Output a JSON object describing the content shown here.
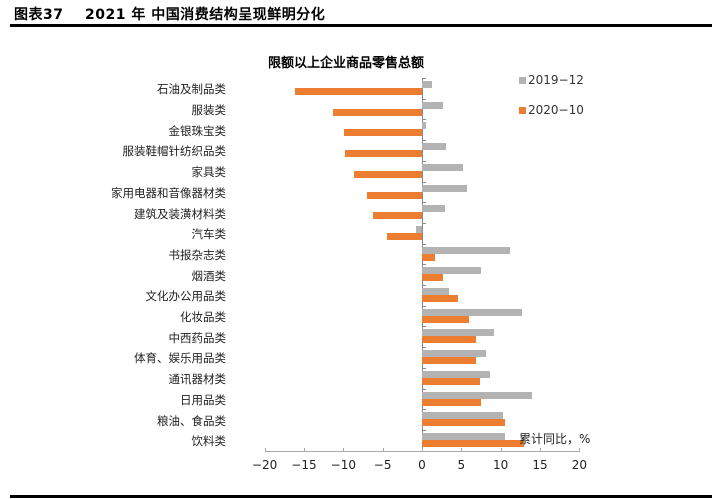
{
  "figure": {
    "title": "图表37    2021 年 中国消费结构呈现鲜明分化"
  },
  "chart_data": {
    "type": "bar",
    "orientation": "horizontal",
    "title": "限额以上企业商品零售总额",
    "xlabel": "累计同比，%",
    "ylabel": "",
    "xlim": [
      -20,
      20
    ],
    "xticks": [
      -20,
      -15,
      -10,
      -5,
      0,
      5,
      10,
      15,
      20
    ],
    "xtick_labels": [
      "−20",
      "−15",
      "−10",
      "−5",
      "0",
      "5",
      "10",
      "15",
      "20"
    ],
    "grid": false,
    "legend_position": "top-right",
    "categories": [
      "石油及制品类",
      "服装类",
      "金银珠宝类",
      "服装鞋帽针纺织品类",
      "家具类",
      "家用电器和音像器材类",
      "建筑及装潢材料类",
      "汽车类",
      "书报杂志类",
      "烟酒类",
      "文化办公用品类",
      "化妆品类",
      "中西药品类",
      "体育、娱乐用品类",
      "通讯器材类",
      "日用品类",
      "粮油、食品类",
      "饮料类"
    ],
    "series": [
      {
        "name": "2019−12",
        "color": "#b3b3b3",
        "values": [
          1.3,
          2.7,
          0.5,
          3.0,
          5.2,
          5.7,
          2.9,
          -0.8,
          11.2,
          7.5,
          3.4,
          12.7,
          9.1,
          8.1,
          8.6,
          14.0,
          10.3,
          10.5
        ]
      },
      {
        "name": "2020−10",
        "color": "#ed7d31",
        "values": [
          -16.1,
          -11.3,
          -9.9,
          -9.8,
          -8.7,
          -7.0,
          -6.2,
          -4.5,
          1.7,
          2.7,
          4.6,
          6.0,
          6.8,
          6.9,
          7.4,
          7.5,
          10.5,
          12.9
        ]
      }
    ]
  }
}
